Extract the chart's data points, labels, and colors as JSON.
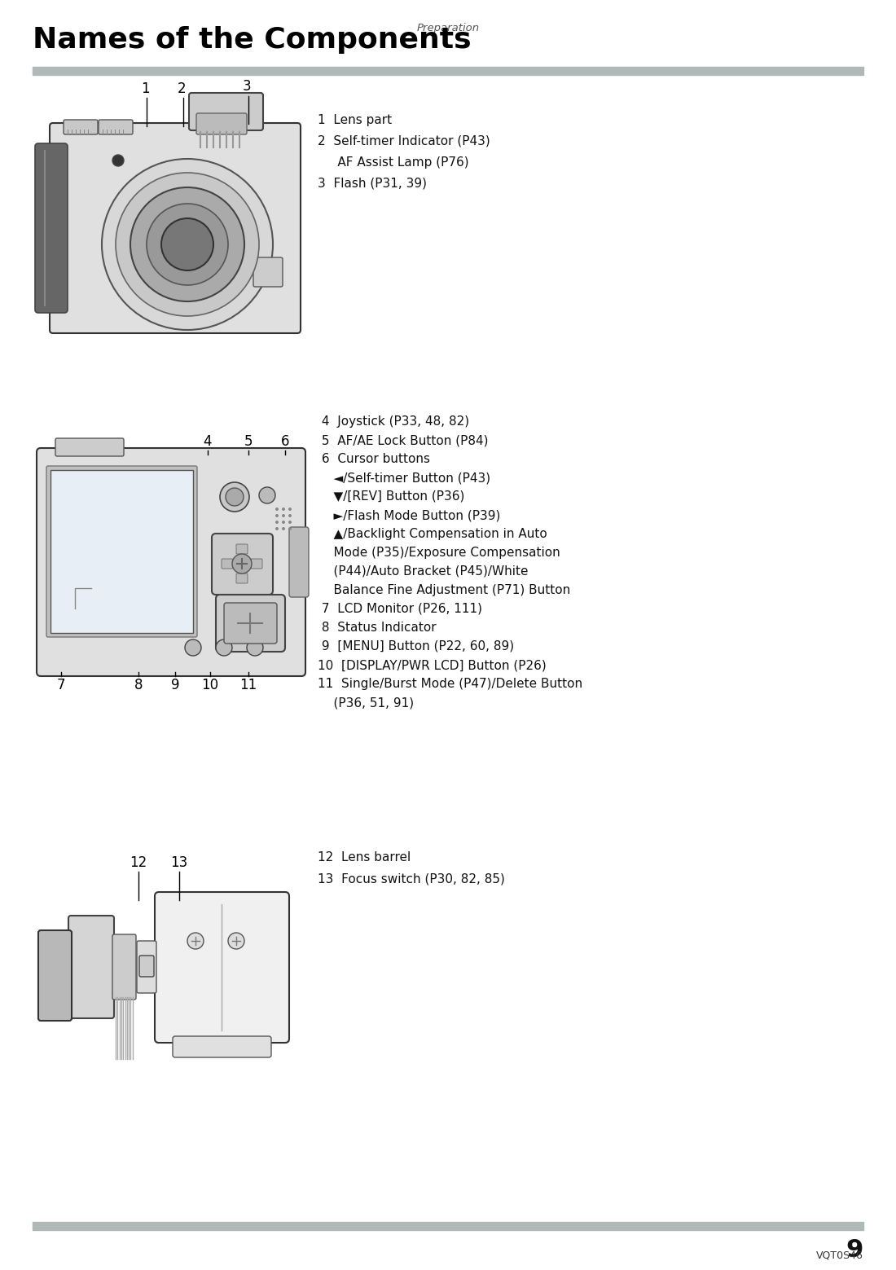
{
  "page_header": "Preparation",
  "title": "Names of the Components",
  "page_number": "9",
  "footer_code": "VQT0S46",
  "bg_color": "#ffffff",
  "section1_text": [
    [
      "1",
      "Lens part"
    ],
    [
      "2",
      "Self-timer Indicator (P43)\n   AF Assist Lamp (P76)"
    ],
    [
      "3",
      "Flash (P31, 39)"
    ]
  ],
  "section2_text_lines": [
    " 4  Joystick (P33, 48, 82)",
    " 5  AF/AE Lock Button (P84)",
    " 6  Cursor buttons",
    "    ◄/Self-timer Button (P43)",
    "    ▼/[REV] Button (P36)",
    "    ►/Flash Mode Button (P39)",
    "    ▲/Backlight Compensation in Auto",
    "    Mode (P35)/Exposure Compensation",
    "    (P44)/Auto Bracket (P45)/White",
    "    Balance Fine Adjustment (P71) Button",
    " 7  LCD Monitor (P26, 111)",
    " 8  Status Indicator",
    " 9  [MENU] Button (P22, 60, 89)",
    "10  [DISPLAY/PWR LCD] Button (P26)",
    "11  Single/Burst Mode (P47)/Delete Button",
    "    (P36, 51, 91)"
  ],
  "section3_text_lines": [
    "12  Lens barrel",
    "13  Focus switch (P30, 82, 85)"
  ]
}
